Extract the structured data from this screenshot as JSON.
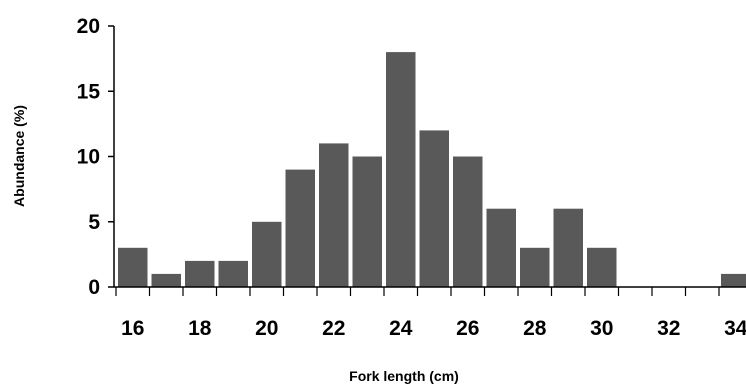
{
  "chart_data": {
    "type": "bar",
    "title": "",
    "xlabel": "Fork length (cm)",
    "ylabel": "Abundance (%)",
    "categories": [
      "16",
      "17",
      "18",
      "19",
      "20",
      "21",
      "22",
      "23",
      "24",
      "25",
      "26",
      "27",
      "28",
      "29",
      "30",
      "31",
      "32",
      "33",
      "34"
    ],
    "values": [
      3,
      1,
      2,
      2,
      5,
      9,
      11,
      10,
      18,
      12,
      10,
      6,
      3,
      6,
      3,
      0,
      0,
      0,
      1
    ],
    "x_tick_labels": [
      "16",
      "18",
      "20",
      "22",
      "24",
      "26",
      "28",
      "30",
      "32",
      "34"
    ],
    "y_ticks": [
      0,
      5,
      10,
      15,
      20
    ],
    "ylim": [
      0,
      20
    ],
    "grid": false,
    "legend": "none",
    "bar_color": "#595959"
  }
}
